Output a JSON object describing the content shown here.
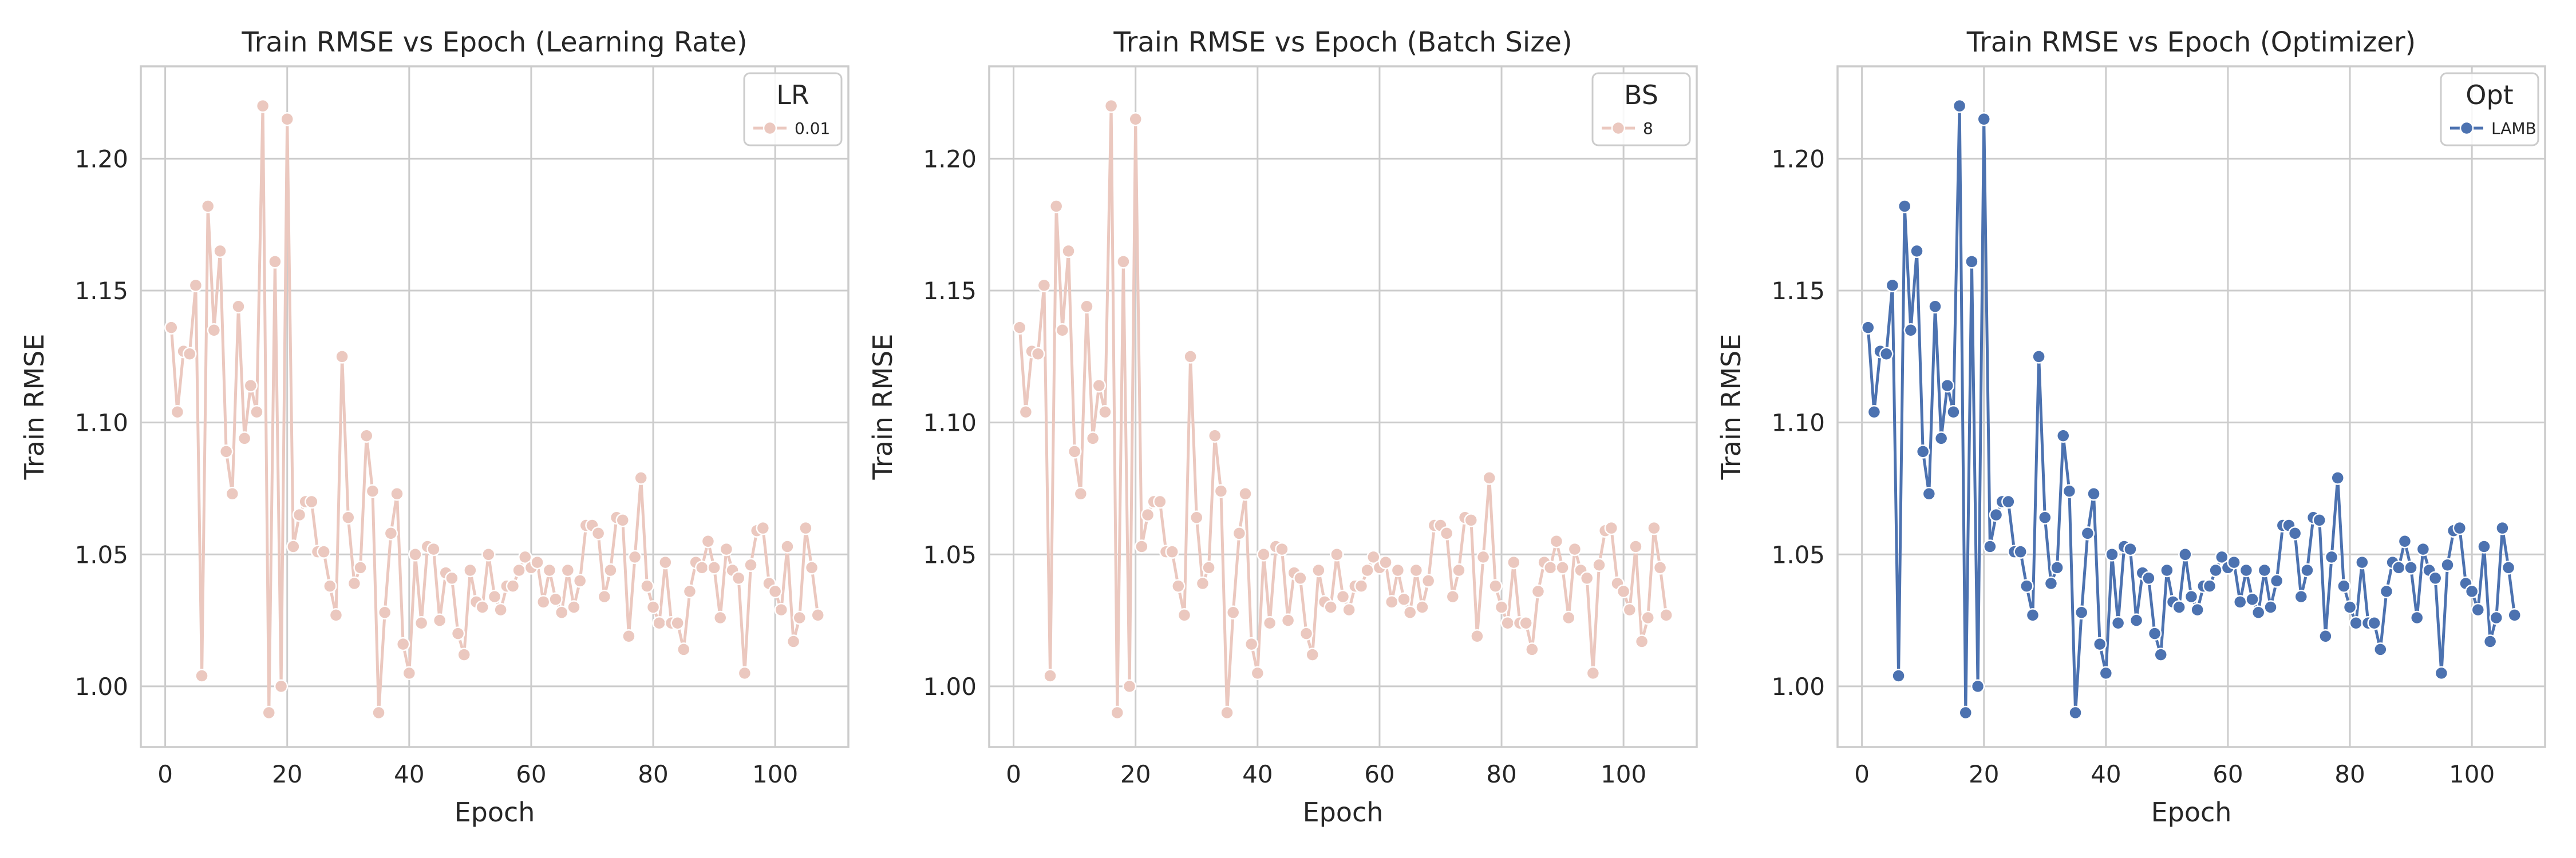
{
  "chart_data": [
    {
      "type": "line",
      "title": "Train RMSE vs Epoch (Learning Rate)",
      "xlabel": "Epoch",
      "ylabel": "Train RMSE",
      "xlim": [
        -4,
        112
      ],
      "ylim": [
        0.977,
        1.235
      ],
      "xticks": [
        0,
        20,
        40,
        60,
        80,
        100
      ],
      "yticks": [
        1.0,
        1.05,
        1.1,
        1.15,
        1.2
      ],
      "grid": true,
      "legend": {
        "title": "LR",
        "placement": "top-right",
        "entries": [
          "0.01"
        ]
      },
      "series": [
        {
          "name": "0.01",
          "color": "#ebc8bf",
          "x": [
            1,
            2,
            3,
            4,
            5,
            6,
            7,
            8,
            9,
            10,
            11,
            12,
            13,
            14,
            15,
            16,
            17,
            18,
            19,
            20,
            21,
            22,
            23,
            24,
            25,
            26,
            27,
            28,
            29,
            30,
            31,
            32,
            33,
            34,
            35,
            36,
            37,
            38,
            39,
            40,
            41,
            42,
            43,
            44,
            45,
            46,
            47,
            48,
            49,
            50,
            51,
            52,
            53,
            54,
            55,
            56,
            57,
            58,
            59,
            60,
            61,
            62,
            63,
            64,
            65,
            66,
            67,
            68,
            69,
            70,
            71,
            72,
            73,
            74,
            75,
            76,
            77,
            78,
            79,
            80,
            81,
            82,
            83,
            84,
            85,
            86,
            87,
            88,
            89,
            90,
            91,
            92,
            93,
            94,
            95,
            96,
            97,
            98,
            99,
            100,
            101,
            102,
            103,
            104,
            105,
            106,
            107
          ],
          "y": [
            1.136,
            1.104,
            1.127,
            1.126,
            1.152,
            1.004,
            1.182,
            1.135,
            1.165,
            1.089,
            1.073,
            1.144,
            1.094,
            1.114,
            1.104,
            1.22,
            0.99,
            1.161,
            1.0,
            1.215,
            1.053,
            1.065,
            1.07,
            1.07,
            1.051,
            1.051,
            1.038,
            1.027,
            1.125,
            1.064,
            1.039,
            1.045,
            1.095,
            1.074,
            0.99,
            1.028,
            1.058,
            1.073,
            1.016,
            1.005,
            1.05,
            1.024,
            1.053,
            1.052,
            1.025,
            1.043,
            1.041,
            1.02,
            1.012,
            1.044,
            1.032,
            1.03,
            1.05,
            1.034,
            1.029,
            1.038,
            1.038,
            1.044,
            1.049,
            1.045,
            1.047,
            1.032,
            1.044,
            1.033,
            1.028,
            1.044,
            1.03,
            1.04,
            1.061,
            1.061,
            1.058,
            1.034,
            1.044,
            1.064,
            1.063,
            1.019,
            1.049,
            1.079,
            1.038,
            1.03,
            1.024,
            1.047,
            1.024,
            1.024,
            1.014,
            1.036,
            1.047,
            1.045,
            1.055,
            1.045,
            1.026,
            1.052,
            1.044,
            1.041,
            1.005,
            1.046,
            1.059,
            1.06,
            1.039,
            1.036,
            1.029,
            1.053,
            1.017,
            1.026,
            1.06,
            1.045,
            1.027
          ]
        }
      ]
    },
    {
      "type": "line",
      "title": "Train RMSE vs Epoch (Batch Size)",
      "xlabel": "Epoch",
      "ylabel": "Train RMSE",
      "xlim": [
        -4,
        112
      ],
      "ylim": [
        0.977,
        1.235
      ],
      "xticks": [
        0,
        20,
        40,
        60,
        80,
        100
      ],
      "yticks": [
        1.0,
        1.05,
        1.1,
        1.15,
        1.2
      ],
      "grid": true,
      "legend": {
        "title": "BS",
        "placement": "top-right",
        "entries": [
          "8"
        ]
      },
      "series": [
        {
          "name": "8",
          "color": "#ebc8bf",
          "x": [
            1,
            2,
            3,
            4,
            5,
            6,
            7,
            8,
            9,
            10,
            11,
            12,
            13,
            14,
            15,
            16,
            17,
            18,
            19,
            20,
            21,
            22,
            23,
            24,
            25,
            26,
            27,
            28,
            29,
            30,
            31,
            32,
            33,
            34,
            35,
            36,
            37,
            38,
            39,
            40,
            41,
            42,
            43,
            44,
            45,
            46,
            47,
            48,
            49,
            50,
            51,
            52,
            53,
            54,
            55,
            56,
            57,
            58,
            59,
            60,
            61,
            62,
            63,
            64,
            65,
            66,
            67,
            68,
            69,
            70,
            71,
            72,
            73,
            74,
            75,
            76,
            77,
            78,
            79,
            80,
            81,
            82,
            83,
            84,
            85,
            86,
            87,
            88,
            89,
            90,
            91,
            92,
            93,
            94,
            95,
            96,
            97,
            98,
            99,
            100,
            101,
            102,
            103,
            104,
            105,
            106,
            107
          ],
          "y": [
            1.136,
            1.104,
            1.127,
            1.126,
            1.152,
            1.004,
            1.182,
            1.135,
            1.165,
            1.089,
            1.073,
            1.144,
            1.094,
            1.114,
            1.104,
            1.22,
            0.99,
            1.161,
            1.0,
            1.215,
            1.053,
            1.065,
            1.07,
            1.07,
            1.051,
            1.051,
            1.038,
            1.027,
            1.125,
            1.064,
            1.039,
            1.045,
            1.095,
            1.074,
            0.99,
            1.028,
            1.058,
            1.073,
            1.016,
            1.005,
            1.05,
            1.024,
            1.053,
            1.052,
            1.025,
            1.043,
            1.041,
            1.02,
            1.012,
            1.044,
            1.032,
            1.03,
            1.05,
            1.034,
            1.029,
            1.038,
            1.038,
            1.044,
            1.049,
            1.045,
            1.047,
            1.032,
            1.044,
            1.033,
            1.028,
            1.044,
            1.03,
            1.04,
            1.061,
            1.061,
            1.058,
            1.034,
            1.044,
            1.064,
            1.063,
            1.019,
            1.049,
            1.079,
            1.038,
            1.03,
            1.024,
            1.047,
            1.024,
            1.024,
            1.014,
            1.036,
            1.047,
            1.045,
            1.055,
            1.045,
            1.026,
            1.052,
            1.044,
            1.041,
            1.005,
            1.046,
            1.059,
            1.06,
            1.039,
            1.036,
            1.029,
            1.053,
            1.017,
            1.026,
            1.06,
            1.045,
            1.027
          ]
        }
      ]
    },
    {
      "type": "line",
      "title": "Train RMSE vs Epoch (Optimizer)",
      "xlabel": "Epoch",
      "ylabel": "Train RMSE",
      "xlim": [
        -4,
        112
      ],
      "ylim": [
        0.977,
        1.235
      ],
      "xticks": [
        0,
        20,
        40,
        60,
        80,
        100
      ],
      "yticks": [
        1.0,
        1.05,
        1.1,
        1.15,
        1.2
      ],
      "grid": true,
      "legend": {
        "title": "Opt",
        "placement": "top-right",
        "entries": [
          "LAMB"
        ]
      },
      "series": [
        {
          "name": "LAMB",
          "color": "#4c72b0",
          "x": [
            1,
            2,
            3,
            4,
            5,
            6,
            7,
            8,
            9,
            10,
            11,
            12,
            13,
            14,
            15,
            16,
            17,
            18,
            19,
            20,
            21,
            22,
            23,
            24,
            25,
            26,
            27,
            28,
            29,
            30,
            31,
            32,
            33,
            34,
            35,
            36,
            37,
            38,
            39,
            40,
            41,
            42,
            43,
            44,
            45,
            46,
            47,
            48,
            49,
            50,
            51,
            52,
            53,
            54,
            55,
            56,
            57,
            58,
            59,
            60,
            61,
            62,
            63,
            64,
            65,
            66,
            67,
            68,
            69,
            70,
            71,
            72,
            73,
            74,
            75,
            76,
            77,
            78,
            79,
            80,
            81,
            82,
            83,
            84,
            85,
            86,
            87,
            88,
            89,
            90,
            91,
            92,
            93,
            94,
            95,
            96,
            97,
            98,
            99,
            100,
            101,
            102,
            103,
            104,
            105,
            106,
            107
          ],
          "y": [
            1.136,
            1.104,
            1.127,
            1.126,
            1.152,
            1.004,
            1.182,
            1.135,
            1.165,
            1.089,
            1.073,
            1.144,
            1.094,
            1.114,
            1.104,
            1.22,
            0.99,
            1.161,
            1.0,
            1.215,
            1.053,
            1.065,
            1.07,
            1.07,
            1.051,
            1.051,
            1.038,
            1.027,
            1.125,
            1.064,
            1.039,
            1.045,
            1.095,
            1.074,
            0.99,
            1.028,
            1.058,
            1.073,
            1.016,
            1.005,
            1.05,
            1.024,
            1.053,
            1.052,
            1.025,
            1.043,
            1.041,
            1.02,
            1.012,
            1.044,
            1.032,
            1.03,
            1.05,
            1.034,
            1.029,
            1.038,
            1.038,
            1.044,
            1.049,
            1.045,
            1.047,
            1.032,
            1.044,
            1.033,
            1.028,
            1.044,
            1.03,
            1.04,
            1.061,
            1.061,
            1.058,
            1.034,
            1.044,
            1.064,
            1.063,
            1.019,
            1.049,
            1.079,
            1.038,
            1.03,
            1.024,
            1.047,
            1.024,
            1.024,
            1.014,
            1.036,
            1.047,
            1.045,
            1.055,
            1.045,
            1.026,
            1.052,
            1.044,
            1.041,
            1.005,
            1.046,
            1.059,
            1.06,
            1.039,
            1.036,
            1.029,
            1.053,
            1.017,
            1.026,
            1.06,
            1.045,
            1.027
          ]
        }
      ]
    }
  ]
}
